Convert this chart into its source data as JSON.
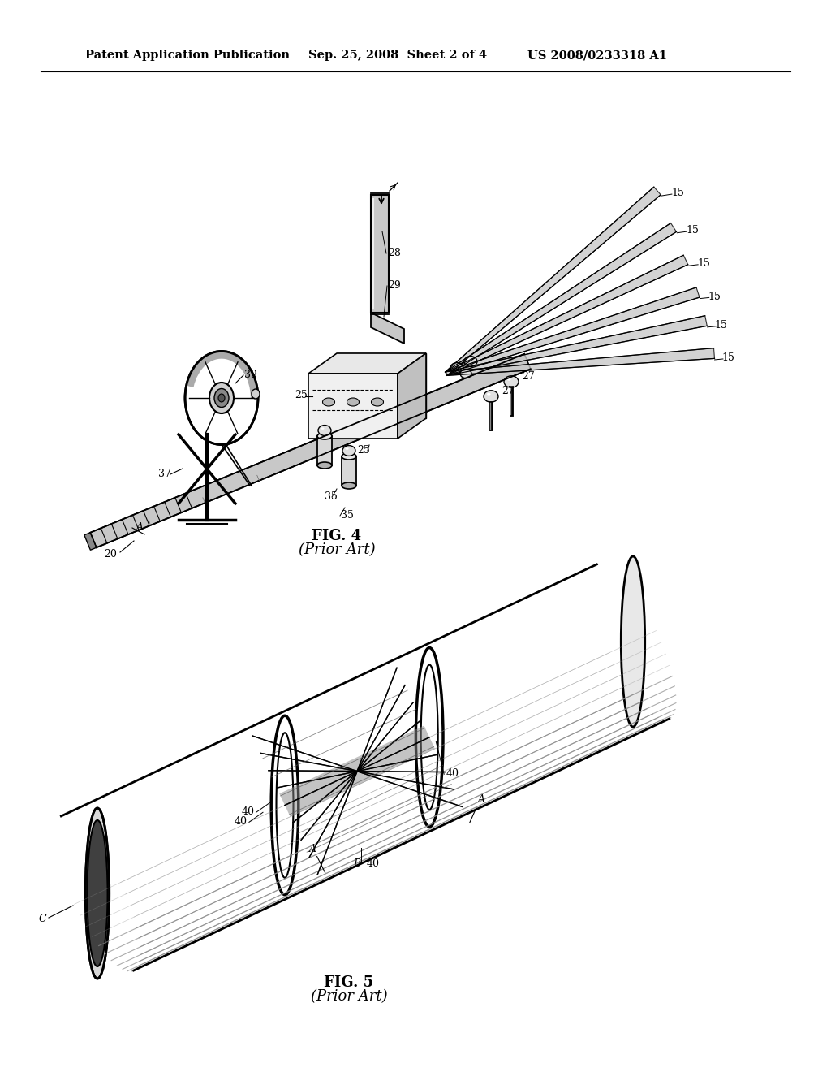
{
  "background_color": "#ffffff",
  "header_text": "Patent Application Publication",
  "header_date": "Sep. 25, 2008  Sheet 2 of 4",
  "header_patent": "US 2008/0233318 A1",
  "fig4_label": "FIG. 4",
  "fig4_sublabel": "(Prior Art)",
  "fig5_label": "FIG. 5",
  "fig5_sublabel": "(Prior Art)",
  "text_color": "#000000",
  "line_color": "#000000",
  "header_fontsize": 11,
  "fig_label_fontsize": 13
}
